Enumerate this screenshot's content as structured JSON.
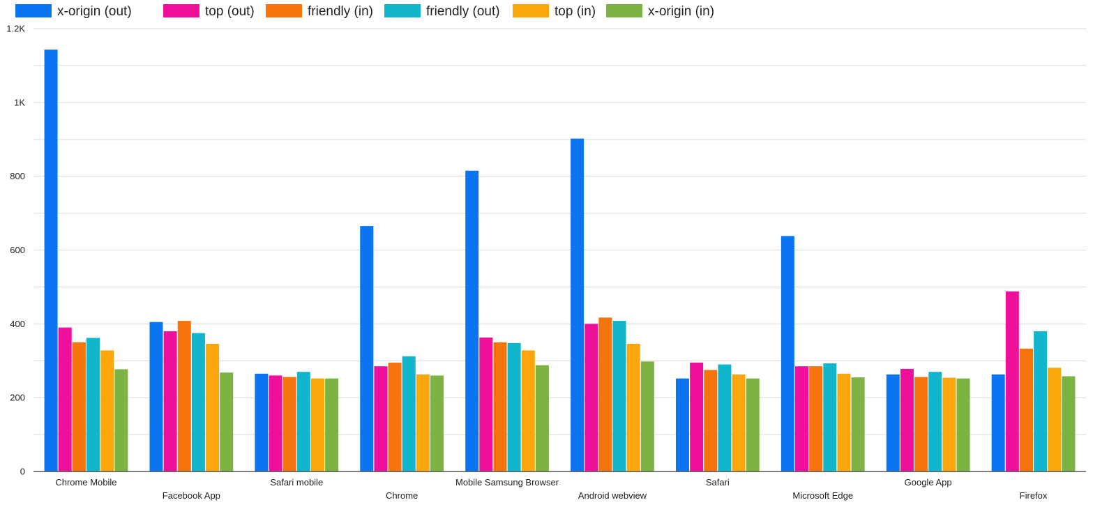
{
  "chart_data": {
    "type": "bar",
    "title": "",
    "xlabel": "",
    "ylabel": "",
    "ylim": [
      0,
      1200
    ],
    "yticks": [
      0,
      200,
      400,
      600,
      800,
      1000,
      1200
    ],
    "ytick_labels": [
      "0",
      "200",
      "400",
      "600",
      "800",
      "1K",
      "1.2K"
    ],
    "grid": true,
    "legend_position": "top-left",
    "categories": [
      "Chrome Mobile",
      "Facebook App",
      "Safari mobile",
      "Chrome",
      "Mobile Samsung Browser",
      "Android webview",
      "Safari",
      "Microsoft Edge",
      "Google App",
      "Firefox"
    ],
    "series": [
      {
        "name": "x-origin (out)",
        "color": "#0b74f0",
        "values": [
          1143,
          405,
          265,
          665,
          815,
          902,
          252,
          638,
          263,
          263
        ]
      },
      {
        "name": "top (out)",
        "color": "#ee0f9a",
        "values": [
          390,
          380,
          260,
          285,
          363,
          400,
          295,
          285,
          278,
          488
        ]
      },
      {
        "name": "friendly (in)",
        "color": "#f5740e",
        "values": [
          350,
          408,
          256,
          295,
          350,
          417,
          275,
          285,
          256,
          333
        ]
      },
      {
        "name": "friendly (out)",
        "color": "#12b6cc",
        "values": [
          362,
          375,
          270,
          312,
          348,
          408,
          290,
          293,
          270,
          380
        ]
      },
      {
        "name": "top (in)",
        "color": "#fca60d",
        "values": [
          328,
          346,
          252,
          263,
          328,
          346,
          263,
          265,
          254,
          281
        ]
      },
      {
        "name": "x-origin (in)",
        "color": "#7cb342",
        "values": [
          277,
          268,
          252,
          260,
          288,
          298,
          252,
          255,
          252,
          258
        ]
      }
    ]
  }
}
